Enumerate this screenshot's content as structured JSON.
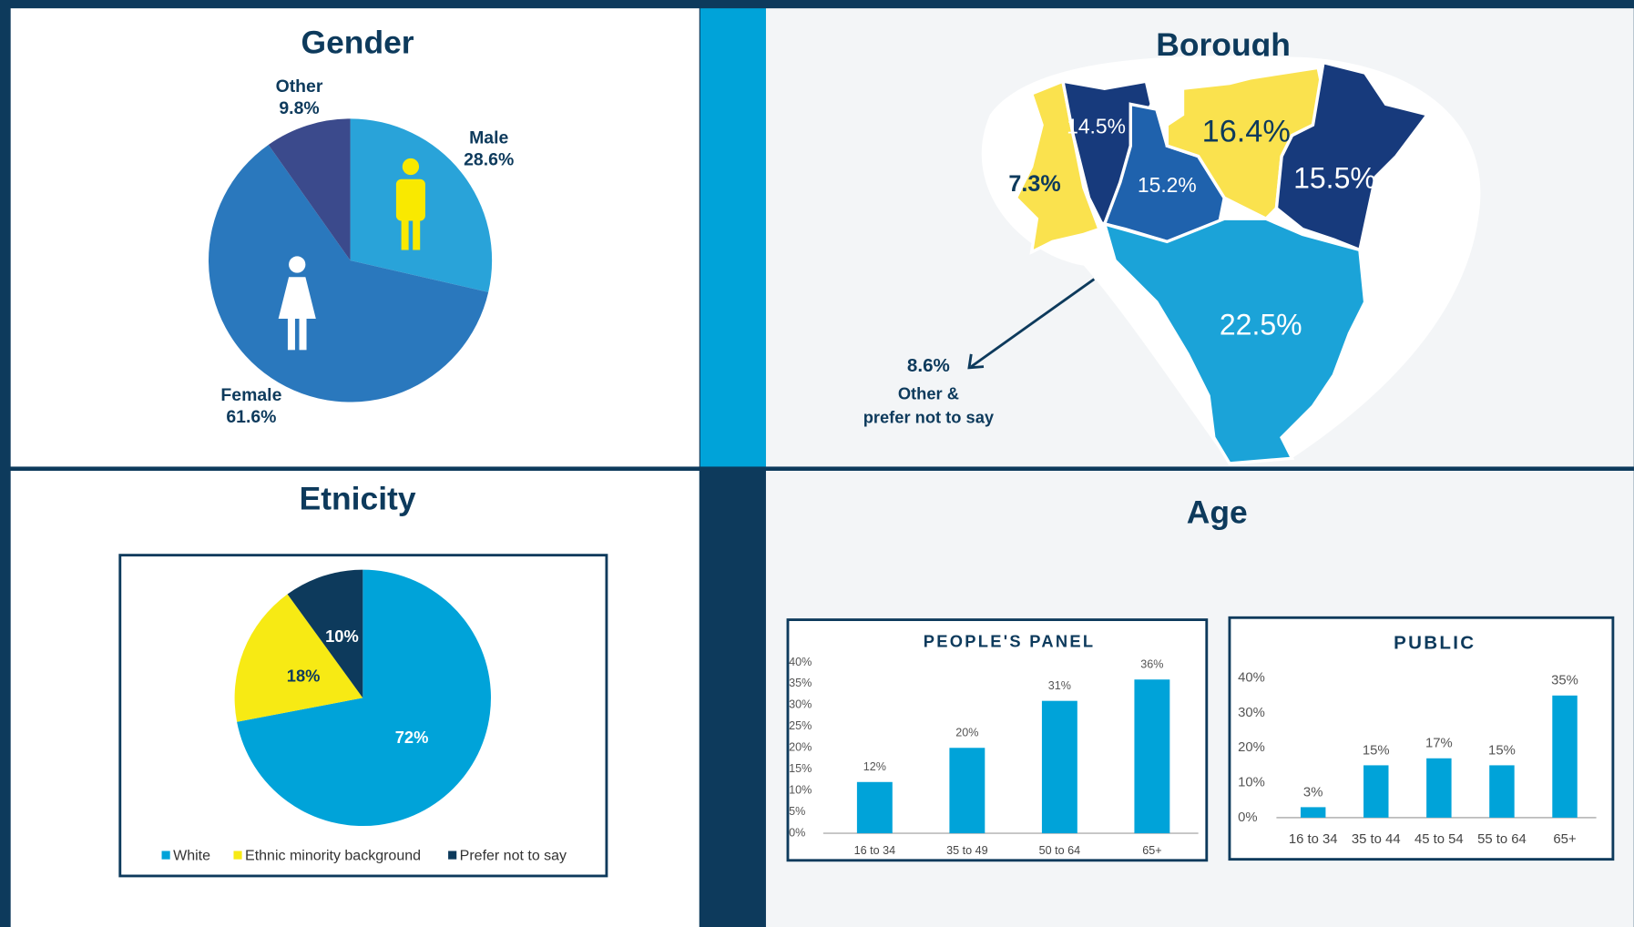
{
  "age_title": "Age",
  "chart_data": [
    {
      "type": "pie",
      "title": "Gender",
      "categories": [
        "Male",
        "Female",
        "Other"
      ],
      "values": [
        28.6,
        61.6,
        9.8
      ],
      "value_labels": [
        "28.6%",
        "61.6%",
        "9.8%"
      ],
      "colors": [
        "#29a3d9",
        "#2a78bd",
        "#3b4a8c"
      ]
    },
    {
      "type": "map",
      "title": "Borough",
      "values": [
        7.3,
        14.5,
        15.2,
        16.4,
        15.5,
        22.5,
        8.6
      ],
      "value_labels": [
        "7.3%",
        "14.5%",
        "15.2%",
        "16.4%",
        "15.5%",
        "22.5%",
        "8.6%"
      ],
      "colors": [
        "#fae24e",
        "#173a7c",
        "#1f62ad",
        "#fae24e",
        "#173a7c",
        "#1ba3d8"
      ],
      "annotation": [
        "Other &",
        "prefer not to say"
      ]
    },
    {
      "type": "pie",
      "title": "Etnicity",
      "categories": [
        "White",
        "Ethnic minority background",
        "Prefer not to say"
      ],
      "values": [
        72,
        18,
        10
      ],
      "value_labels": [
        "72%",
        "18%",
        "10%"
      ],
      "colors": [
        "#00a3d9",
        "#f7ea14",
        "#0d3a5c"
      ],
      "legend": "bottom"
    },
    {
      "type": "bar",
      "title": "PEOPLE'S PANEL",
      "categories": [
        "16 to 34",
        "35 to 49",
        "50 to 64",
        "65+"
      ],
      "values": [
        12,
        20,
        31,
        36
      ],
      "value_labels": [
        "12%",
        "20%",
        "31%",
        "36%"
      ],
      "color": "#00a3d9",
      "ylim": [
        0,
        40
      ],
      "yticks": [
        {
          "value": 0,
          "label": "0%"
        },
        {
          "value": 5,
          "label": "5%"
        },
        {
          "value": 10,
          "label": "10%"
        },
        {
          "value": 15,
          "label": "15%"
        },
        {
          "value": 20,
          "label": "20%"
        },
        {
          "value": 25,
          "label": "25%"
        },
        {
          "value": 30,
          "label": "30%"
        },
        {
          "value": 35,
          "label": "35%"
        },
        {
          "value": 40,
          "label": "40%"
        }
      ]
    },
    {
      "type": "bar",
      "title": "PUBLIC",
      "categories": [
        "16 to 34",
        "35 to 44",
        "45 to 54",
        "55 to 64",
        "65+"
      ],
      "values": [
        3,
        15,
        17,
        15,
        35
      ],
      "value_labels": [
        "3%",
        "15%",
        "17%",
        "15%",
        "35%"
      ],
      "color": "#00a3d9",
      "ylim": [
        0,
        40
      ],
      "yticks": [
        {
          "value": 0,
          "label": "0%"
        },
        {
          "value": 10,
          "label": "10%"
        },
        {
          "value": 20,
          "label": "20%"
        },
        {
          "value": 30,
          "label": "30%"
        },
        {
          "value": 40,
          "label": "40%"
        }
      ]
    }
  ]
}
